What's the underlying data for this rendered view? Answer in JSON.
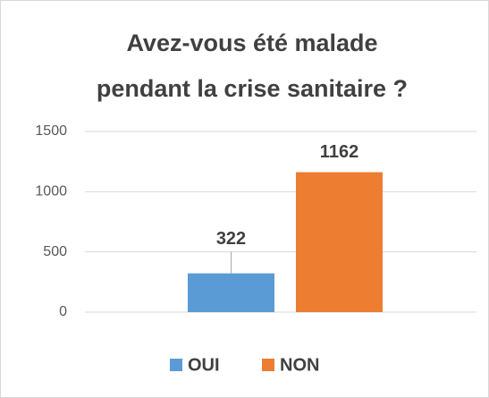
{
  "chart_data": {
    "type": "bar",
    "title": [
      "Avez-vous été malade",
      "pendant la crise sanitaire ?"
    ],
    "series": [
      {
        "name": "OUI",
        "color": "#5b9bd5",
        "values": [
          322
        ]
      },
      {
        "name": "NON",
        "color": "#ed7d31",
        "values": [
          1162
        ]
      }
    ],
    "ylim": [
      0,
      1500
    ],
    "yticks": [
      0,
      500,
      1000,
      1500
    ],
    "grid": true,
    "legend": "bottom"
  }
}
